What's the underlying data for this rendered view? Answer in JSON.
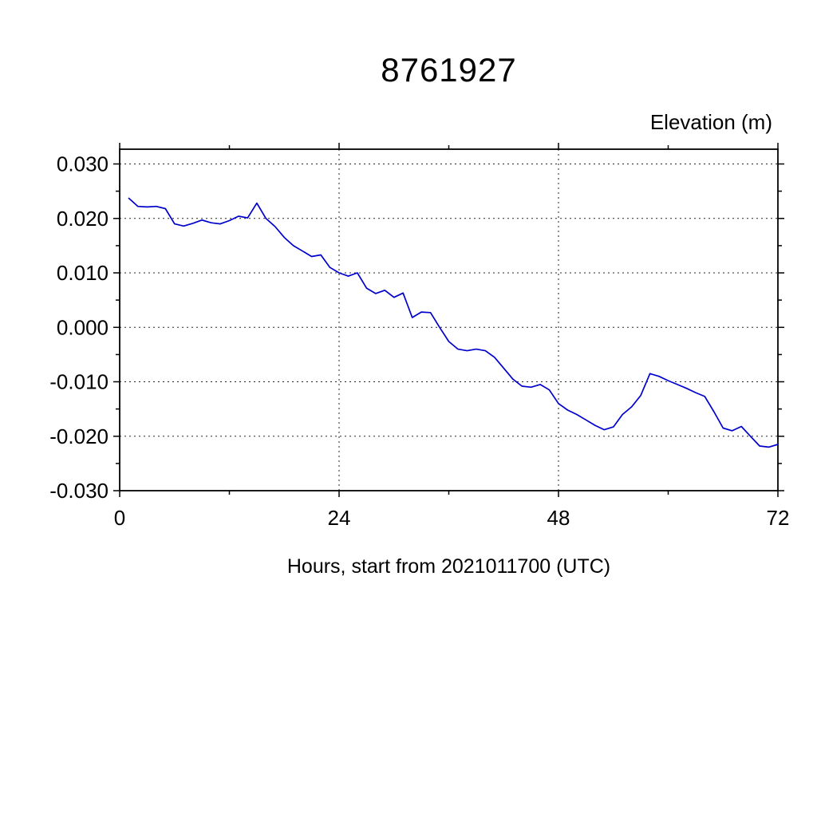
{
  "title": "8761927",
  "chart_data": {
    "type": "line",
    "title": "8761927",
    "ylabel": "Elevation (m)",
    "xlabel": "Hours, start from 2021011700 (UTC)",
    "xlim": [
      0,
      72
    ],
    "ylim": [
      -0.03,
      0.03
    ],
    "xticks": [
      0,
      24,
      48,
      72
    ],
    "xtick_labels": [
      "0",
      "24",
      "48",
      "72"
    ],
    "x_minor_ticks": [
      12,
      36,
      60
    ],
    "yticks": [
      0.03,
      0.02,
      0.01,
      0.0,
      -0.01,
      -0.02,
      -0.03
    ],
    "ytick_labels": [
      "0.030",
      "0.020",
      "0.010",
      "0.000",
      "-0.010",
      "-0.020",
      "-0.030"
    ],
    "y_minor_ticks": [
      0.025,
      0.015,
      0.005,
      -0.005,
      -0.015,
      -0.025
    ],
    "grid": "dashed",
    "legend": "none",
    "line_color": "#0000cd",
    "series": [
      {
        "name": "elevation",
        "x": [
          1,
          2,
          3,
          4,
          5,
          6,
          7,
          8,
          9,
          10,
          11,
          12,
          13,
          14,
          15,
          16,
          17,
          18,
          19,
          20,
          21,
          22,
          23,
          24,
          25,
          26,
          27,
          28,
          29,
          30,
          31,
          32,
          33,
          34,
          35,
          36,
          37,
          38,
          39,
          40,
          41,
          42,
          43,
          44,
          45,
          46,
          47,
          48,
          49,
          50,
          51,
          52,
          53,
          54,
          55,
          56,
          57,
          58,
          59,
          60,
          61,
          62,
          63,
          64,
          65,
          66,
          67,
          68,
          69,
          70,
          71,
          72
        ],
        "values": [
          0.0237,
          0.0222,
          0.0221,
          0.0222,
          0.0218,
          0.019,
          0.0186,
          0.0191,
          0.0197,
          0.0192,
          0.019,
          0.0196,
          0.0204,
          0.0201,
          0.0228,
          0.02,
          0.0185,
          0.0165,
          0.015,
          0.014,
          0.013,
          0.0133,
          0.011,
          0.01,
          0.0094,
          0.01,
          0.0072,
          0.0062,
          0.0068,
          0.0055,
          0.0063,
          0.0018,
          0.0028,
          0.0027,
          0.0,
          -0.0026,
          -0.004,
          -0.0043,
          -0.004,
          -0.0043,
          -0.0055,
          -0.0075,
          -0.0095,
          -0.0108,
          -0.011,
          -0.0105,
          -0.0115,
          -0.014,
          -0.0152,
          -0.016,
          -0.017,
          -0.018,
          -0.0188,
          -0.0183,
          -0.016,
          -0.0146,
          -0.0125,
          -0.0085,
          -0.009,
          -0.0098,
          -0.0105,
          -0.0112,
          -0.012,
          -0.0127,
          -0.0155,
          -0.0185,
          -0.019,
          -0.0182,
          -0.02,
          -0.0218,
          -0.022,
          -0.0215
        ]
      }
    ]
  }
}
